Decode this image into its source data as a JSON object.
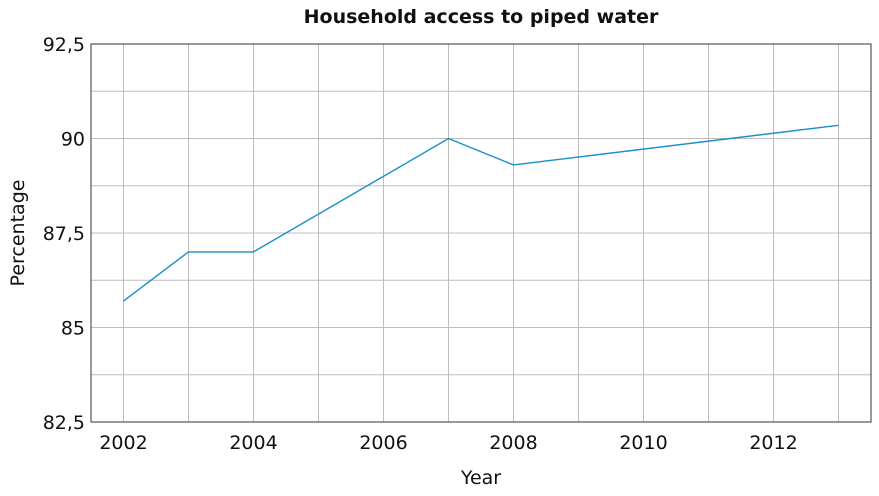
{
  "chart_data": {
    "type": "line",
    "title": "Household access to piped water",
    "xlabel": "Year",
    "ylabel": "Percentage",
    "xlim": [
      2001.5,
      2013.5
    ],
    "ylim": [
      82.5,
      92.5
    ],
    "xticks": [
      2002,
      2004,
      2006,
      2008,
      2010,
      2012
    ],
    "yticks": [
      82.5,
      85,
      87.5,
      90,
      92.5
    ],
    "ytick_labels": [
      "82,5",
      "85",
      "87,5",
      "90",
      "92,5"
    ],
    "grid": true,
    "series": [
      {
        "color": "#1a8fc9",
        "x": [
          2002,
          2003,
          2004,
          2007,
          2008,
          2013
        ],
        "values": [
          85.7,
          87.0,
          87.0,
          90.0,
          89.3,
          90.35
        ]
      }
    ]
  }
}
